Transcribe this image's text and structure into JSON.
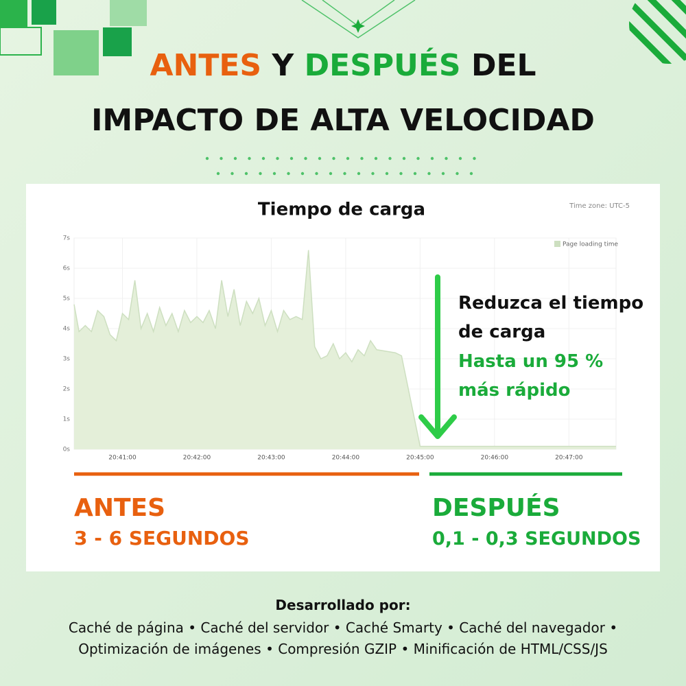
{
  "headline": {
    "line1": [
      "ANTES",
      "Y",
      "DESPUÉS",
      "DEL"
    ],
    "line2": "IMPACTO DE ALTA VELOCIDAD"
  },
  "chart_data": {
    "type": "area",
    "title": "Tiempo de carga",
    "timezone": "Time zone: UTC-5",
    "x": [
      "20:40:21",
      "20:40:25",
      "20:40:30",
      "20:40:35",
      "20:40:40",
      "20:40:45",
      "20:40:50",
      "20:40:55",
      "20:41:00",
      "20:41:05",
      "20:41:10",
      "20:41:15",
      "20:41:20",
      "20:41:25",
      "20:41:30",
      "20:41:35",
      "20:41:40",
      "20:41:45",
      "20:41:50",
      "20:41:55",
      "20:42:00",
      "20:42:05",
      "20:42:10",
      "20:42:15",
      "20:42:20",
      "20:42:25",
      "20:42:30",
      "20:42:35",
      "20:42:40",
      "20:42:45",
      "20:42:50",
      "20:42:55",
      "20:43:00",
      "20:43:05",
      "20:43:10",
      "20:43:15",
      "20:43:20",
      "20:43:25",
      "20:43:30",
      "20:43:35",
      "20:43:40",
      "20:43:45",
      "20:43:50",
      "20:43:55",
      "20:44:00",
      "20:44:05",
      "20:44:10",
      "20:44:15",
      "20:44:20",
      "20:44:25",
      "20:44:40",
      "20:44:45",
      "20:45:00",
      "20:45:30",
      "20:46:00",
      "20:47:00",
      "20:47:38"
    ],
    "series": [
      {
        "name": "Page loading time",
        "color": "#e4efd9",
        "line_color": "#cddfc0",
        "values": [
          4.8,
          3.9,
          4.1,
          3.9,
          4.6,
          4.4,
          3.8,
          3.6,
          4.5,
          4.3,
          5.6,
          4.0,
          4.5,
          3.9,
          4.7,
          4.1,
          4.5,
          3.9,
          4.6,
          4.2,
          4.4,
          4.2,
          4.6,
          4.0,
          5.6,
          4.4,
          5.3,
          4.1,
          4.9,
          4.5,
          5.0,
          4.1,
          4.6,
          3.9,
          4.6,
          4.3,
          4.4,
          4.3,
          6.6,
          3.4,
          3.0,
          3.1,
          3.5,
          3.0,
          3.2,
          2.9,
          3.3,
          3.1,
          3.6,
          3.3,
          3.2,
          3.1,
          0.1,
          0.1,
          0.1,
          0.1,
          0.1
        ]
      }
    ],
    "xlim": [
      "20:40:21",
      "20:47:38"
    ],
    "xticks": [
      "20:41:00",
      "20:42:00",
      "20:43:00",
      "20:44:00",
      "20:45:00",
      "20:46:00",
      "20:47:00"
    ],
    "ylim": [
      0,
      7
    ],
    "yticks": [
      {
        "value": 0,
        "label": "0s"
      },
      {
        "value": 1,
        "label": "1s"
      },
      {
        "value": 2,
        "label": "2s"
      },
      {
        "value": 3,
        "label": "3s"
      },
      {
        "value": 4,
        "label": "4s"
      },
      {
        "value": 5,
        "label": "5s"
      },
      {
        "value": 6,
        "label": "6s"
      },
      {
        "value": 7,
        "label": "7s"
      }
    ],
    "grid": true,
    "legend": "top-right",
    "annotation": {
      "lines": [
        "Reduzca el tiempo",
        "de carga"
      ],
      "highlight": [
        "Hasta un 95 %",
        "más rápido"
      ]
    }
  },
  "summary": {
    "before": {
      "label": "ANTES",
      "value": "3 - 6 SEGUNDOS"
    },
    "after": {
      "label": "DESPUÉS",
      "value": "0,1 - 0,3 SEGUNDOS"
    }
  },
  "footer": {
    "heading": "Desarrollado por:",
    "lines": [
      "Caché de página • Caché del servidor • Caché Smarty • Caché del navegador •",
      "Optimización de imágenes • Compresión GZIP • Minificación de HTML/CSS/JS"
    ]
  }
}
